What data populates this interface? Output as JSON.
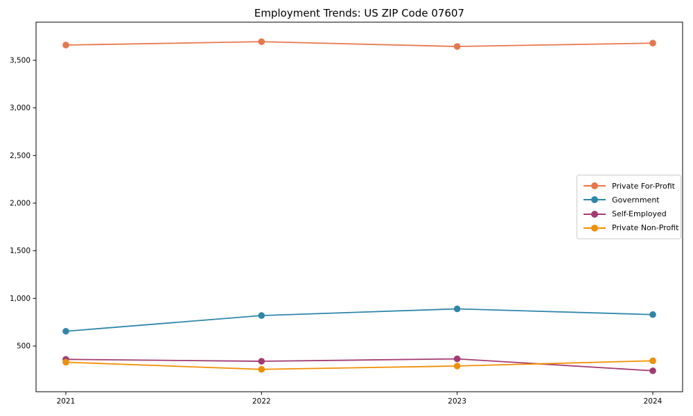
{
  "title": "Employment Trends: US ZIP Code 07607",
  "chart_data": {
    "type": "line",
    "x": [
      2021,
      2022,
      2023,
      2024
    ],
    "xtick_labels": [
      "2021",
      "2022",
      "2023",
      "2024"
    ],
    "yticks": [
      500,
      1000,
      1500,
      2000,
      2500,
      3000,
      3500
    ],
    "ytick_labels": [
      "500",
      "1,000",
      "1,500",
      "2,000",
      "2,500",
      "3,000",
      "3,500"
    ],
    "ylim": [
      20,
      3900
    ],
    "grid": false,
    "legend_position": "center right",
    "marker": "circle",
    "frame_color": "#000000",
    "series": [
      {
        "name": "Private For-Profit",
        "color": "#E8764A",
        "values": [
          3660,
          3695,
          3645,
          3680
        ]
      },
      {
        "name": "Government",
        "color": "#2E86AB",
        "values": [
          655,
          820,
          890,
          830
        ]
      },
      {
        "name": "Self-Employed",
        "color": "#A23B72",
        "values": [
          360,
          340,
          365,
          240
        ]
      },
      {
        "name": "Private Non-Profit",
        "color": "#F18F01",
        "values": [
          330,
          255,
          290,
          345
        ]
      }
    ],
    "xlabel": "",
    "ylabel": ""
  }
}
